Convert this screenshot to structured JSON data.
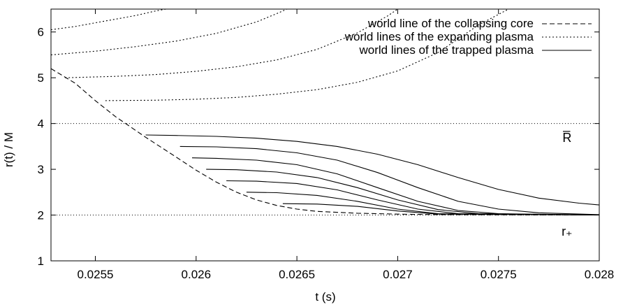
{
  "chart_data": {
    "type": "line",
    "title": "",
    "xlabel": "t (s)",
    "ylabel": "r(t) / M",
    "xlim": [
      0.02528,
      0.028
    ],
    "ylim": [
      1,
      6.5
    ],
    "x_ticks": [
      {
        "value": 0.0255,
        "label": "0.0255"
      },
      {
        "value": 0.026,
        "label": "0.026"
      },
      {
        "value": 0.0265,
        "label": "0.0265"
      },
      {
        "value": 0.027,
        "label": "0.027"
      },
      {
        "value": 0.0275,
        "label": "0.0275"
      },
      {
        "value": 0.028,
        "label": "0.028"
      }
    ],
    "y_ticks": [
      {
        "value": 1,
        "label": "1"
      },
      {
        "value": 2,
        "label": "2"
      },
      {
        "value": 3,
        "label": "3"
      },
      {
        "value": 4,
        "label": "4"
      },
      {
        "value": 5,
        "label": "5"
      },
      {
        "value": 6,
        "label": "6"
      }
    ],
    "reference_lines": [
      {
        "y": 4,
        "label": "R̅",
        "label_x": 0.02784,
        "label_y": 3.6,
        "style": "dotted"
      },
      {
        "y": 2,
        "label": "r₊",
        "label_x": 0.02784,
        "label_y": 1.55,
        "style": "dotted"
      }
    ],
    "legend": {
      "position": "top-right",
      "entries": [
        {
          "label": "world line of the collapsing core",
          "style": "dashed"
        },
        {
          "label": "world lines of the expanding plasma",
          "style": "dotted"
        },
        {
          "label": "world lines of the trapped plasma",
          "style": "solid"
        }
      ]
    },
    "series": [
      {
        "style": "dashed",
        "x": [
          0.02528,
          0.0254,
          0.0255,
          0.0256,
          0.02575,
          0.0259,
          0.026,
          0.0261,
          0.0262,
          0.0263,
          0.0264,
          0.0265,
          0.0266,
          0.0268,
          0.027,
          0.0272,
          0.0275,
          0.028
        ],
        "y": [
          5.2,
          4.88,
          4.5,
          4.15,
          3.7,
          3.27,
          2.98,
          2.72,
          2.5,
          2.33,
          2.21,
          2.13,
          2.08,
          2.04,
          2.02,
          2.01,
          2.005,
          2.0
        ]
      },
      {
        "style": "dotted",
        "x": [
          0.02528,
          0.0254,
          0.0255,
          0.0256,
          0.0257,
          0.0258,
          0.02585
        ],
        "y": [
          6.05,
          6.12,
          6.2,
          6.28,
          6.36,
          6.46,
          6.5
        ]
      },
      {
        "style": "dotted",
        "x": [
          0.02528,
          0.0255,
          0.0257,
          0.0259,
          0.0261,
          0.0263,
          0.0264,
          0.02645
        ],
        "y": [
          5.5,
          5.58,
          5.68,
          5.8,
          5.97,
          6.22,
          6.4,
          6.5
        ]
      },
      {
        "style": "dotted",
        "x": [
          0.02535,
          0.0256,
          0.0258,
          0.026,
          0.0262,
          0.0264,
          0.0266,
          0.0268,
          0.02695,
          0.027
        ],
        "y": [
          5.0,
          5.03,
          5.07,
          5.14,
          5.24,
          5.39,
          5.62,
          5.98,
          6.35,
          6.5
        ]
      },
      {
        "style": "dotted",
        "x": [
          0.02555,
          0.0258,
          0.026,
          0.0262,
          0.0264,
          0.0266,
          0.0268,
          0.027,
          0.0272,
          0.0274,
          0.02755
        ],
        "y": [
          4.5,
          4.51,
          4.53,
          4.57,
          4.64,
          4.74,
          4.9,
          5.15,
          5.55,
          6.15,
          6.5
        ]
      },
      {
        "style": "solid",
        "x": [
          0.02575,
          0.0259,
          0.0261,
          0.0263,
          0.0265,
          0.0267,
          0.0269,
          0.0271,
          0.0273,
          0.0275,
          0.0277,
          0.0279,
          0.028
        ],
        "y": [
          3.75,
          3.74,
          3.72,
          3.68,
          3.61,
          3.5,
          3.33,
          3.1,
          2.82,
          2.56,
          2.37,
          2.26,
          2.22
        ]
      },
      {
        "style": "solid",
        "x": [
          0.02592,
          0.0261,
          0.0263,
          0.0265,
          0.0267,
          0.0269,
          0.0271,
          0.0273,
          0.0275,
          0.0277,
          0.028
        ],
        "y": [
          3.5,
          3.49,
          3.45,
          3.36,
          3.2,
          2.93,
          2.6,
          2.3,
          2.13,
          2.05,
          2.01
        ]
      },
      {
        "style": "solid",
        "x": [
          0.02598,
          0.0261,
          0.0263,
          0.0265,
          0.0267,
          0.0269,
          0.0271,
          0.0273,
          0.0275,
          0.028
        ],
        "y": [
          3.25,
          3.24,
          3.2,
          3.1,
          2.9,
          2.6,
          2.3,
          2.1,
          2.03,
          2.0
        ]
      },
      {
        "style": "solid",
        "x": [
          0.02605,
          0.0262,
          0.0264,
          0.0266,
          0.0268,
          0.027,
          0.0272,
          0.0274,
          0.028
        ],
        "y": [
          3.0,
          2.99,
          2.94,
          2.82,
          2.6,
          2.33,
          2.12,
          2.03,
          2.0
        ]
      },
      {
        "style": "solid",
        "x": [
          0.02615,
          0.0263,
          0.0265,
          0.0267,
          0.0269,
          0.0271,
          0.0273,
          0.028
        ],
        "y": [
          2.75,
          2.74,
          2.69,
          2.55,
          2.33,
          2.13,
          2.03,
          2.0
        ]
      },
      {
        "style": "solid",
        "x": [
          0.02625,
          0.0264,
          0.0266,
          0.0268,
          0.027,
          0.0272,
          0.028
        ],
        "y": [
          2.5,
          2.49,
          2.43,
          2.3,
          2.13,
          2.03,
          2.0
        ]
      },
      {
        "style": "solid",
        "x": [
          0.02643,
          0.0266,
          0.0268,
          0.027,
          0.0272,
          0.028
        ],
        "y": [
          2.25,
          2.24,
          2.19,
          2.09,
          2.02,
          2.0
        ]
      }
    ]
  }
}
